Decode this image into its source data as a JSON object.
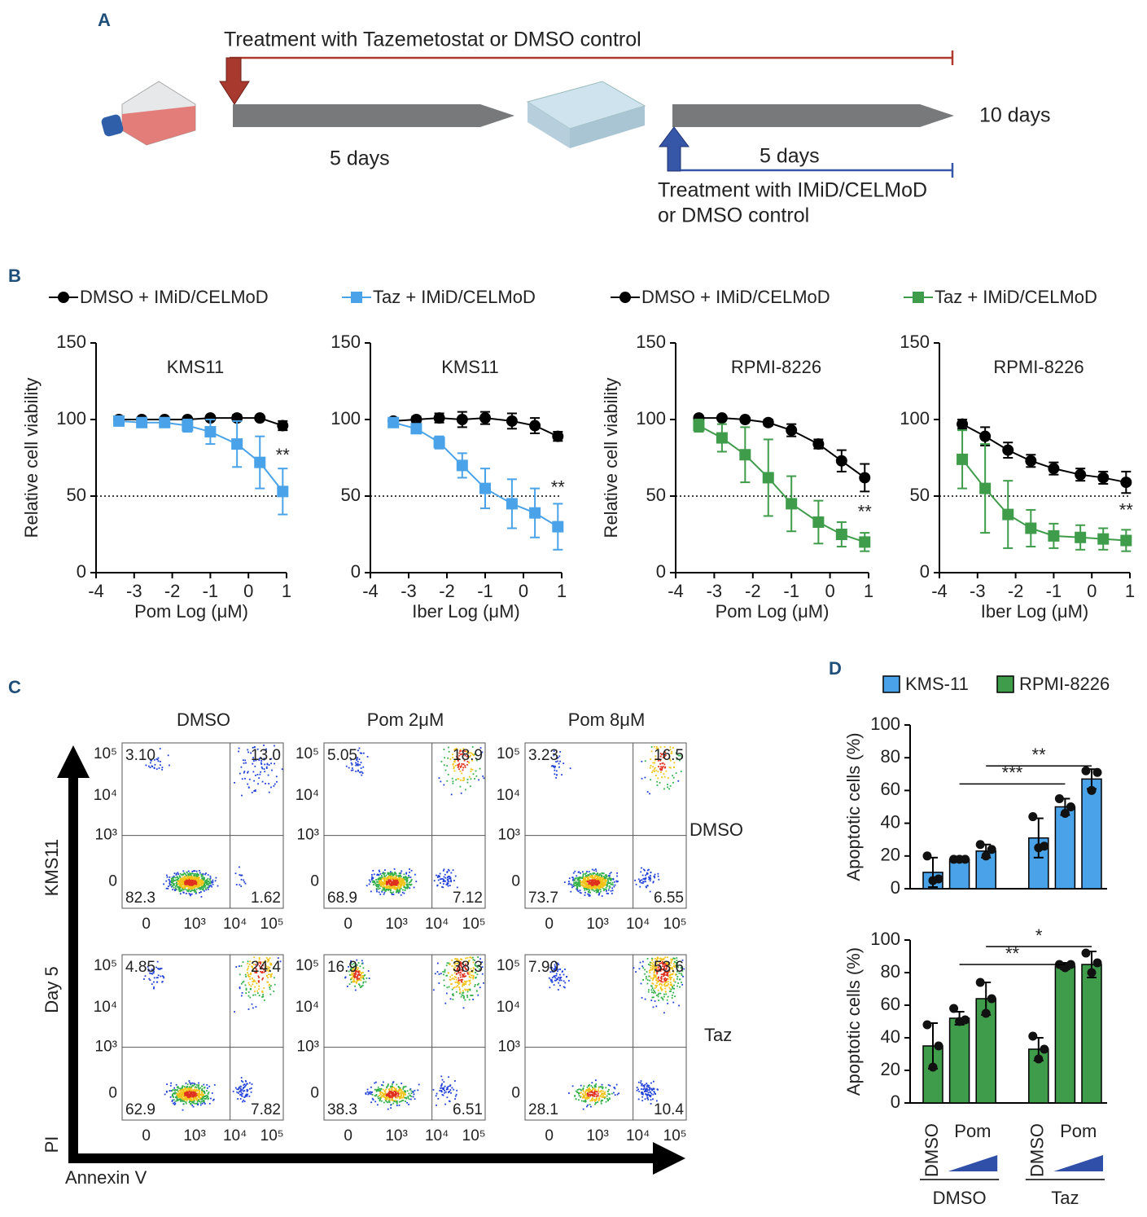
{
  "panel_labels": [
    "A",
    "B",
    "C",
    "D"
  ],
  "schematic": {
    "treatment_top": "Treatment with Tazemetostat or DMSO control",
    "days_first": "5 days",
    "days_total": "10 days",
    "days_second": "5 days",
    "treatment_bottom": [
      "Treatment with IMiD/CELMoD",
      "or DMSO control"
    ]
  },
  "chart_data": [
    {
      "type": "line",
      "title": "KMS11",
      "ylabel": "Relative cell viability",
      "xlabel": "Pom Log (μM)",
      "xlim": [
        -4,
        1
      ],
      "xticks": [
        -4,
        -3,
        -2,
        -1,
        0,
        1
      ],
      "ylim": [
        0,
        150
      ],
      "yticks": [
        0,
        50,
        100,
        150
      ],
      "reference_line": 50,
      "x": [
        -3.4,
        -2.8,
        -2.2,
        -1.6,
        -1,
        -0.3,
        0.3,
        0.9
      ],
      "series": [
        {
          "name": "DMSO + IMiD/CELMoD",
          "color": "#000000",
          "marker": "circle",
          "values": [
            100,
            100,
            100,
            100,
            101,
            101,
            101,
            96
          ],
          "errors": [
            2,
            1,
            1,
            1,
            1,
            2,
            1,
            3
          ]
        },
        {
          "color": "#4aa3e8",
          "marker": "square",
          "values": [
            99,
            98,
            98,
            96,
            92,
            84,
            72,
            53
          ],
          "errors": [
            2,
            2,
            2,
            4,
            8,
            15,
            17,
            15
          ]
        }
      ],
      "annotations": [
        {
          "text": "**",
          "x": 0.9,
          "y": 76
        }
      ]
    },
    {
      "type": "line",
      "title": "KMS11",
      "xlabel": "Iber Log (μM)",
      "xlim": [
        -4,
        1
      ],
      "xticks": [
        -4,
        -3,
        -2,
        -1,
        0,
        1
      ],
      "ylim": [
        0,
        150
      ],
      "yticks": [
        0,
        50,
        100,
        150
      ],
      "reference_line": 50,
      "x": [
        -3.4,
        -2.8,
        -2.2,
        -1.6,
        -1,
        -0.3,
        0.3,
        0.9
      ],
      "series": [
        {
          "color": "#000000",
          "marker": "circle",
          "values": [
            99,
            100,
            101,
            100,
            101,
            99,
            96,
            89
          ],
          "errors": [
            1,
            2,
            3,
            5,
            4,
            5,
            5,
            3
          ]
        },
        {
          "name": "Taz + IMiD/CELMoD",
          "color": "#4aa3e8",
          "marker": "square",
          "values": [
            98,
            94,
            85,
            70,
            55,
            45,
            39,
            30
          ],
          "errors": [
            1,
            2,
            4,
            8,
            13,
            16,
            16,
            15
          ]
        }
      ],
      "annotations": [
        {
          "text": "**",
          "x": 0.9,
          "y": 55
        }
      ]
    },
    {
      "type": "line",
      "title": "RPMI-8226",
      "ylabel": "Relative cell viability",
      "xlabel": "Pom Log (μM)",
      "xlim": [
        -4,
        1
      ],
      "xticks": [
        -4,
        -3,
        -2,
        -1,
        0,
        1
      ],
      "ylim": [
        0,
        150
      ],
      "yticks": [
        0,
        50,
        100,
        150
      ],
      "reference_line": 50,
      "x": [
        -3.4,
        -2.8,
        -2.2,
        -1.6,
        -1,
        -0.3,
        0.3,
        0.9
      ],
      "series": [
        {
          "name": "DMSO + IMiD/CELMoD",
          "color": "#000000",
          "marker": "circle",
          "values": [
            101,
            101,
            100,
            98,
            93,
            84,
            73,
            62
          ],
          "errors": [
            1,
            1,
            1,
            2,
            4,
            3,
            7,
            9
          ]
        },
        {
          "color": "#3f9c4a",
          "marker": "square",
          "values": [
            96,
            88,
            77,
            62,
            45,
            33,
            25,
            20
          ],
          "errors": [
            4,
            9,
            18,
            25,
            18,
            14,
            8,
            6
          ]
        }
      ],
      "annotations": [
        {
          "text": "**",
          "x": 0.9,
          "y": 39
        }
      ]
    },
    {
      "type": "line",
      "title": "RPMI-8226",
      "xlabel": "Iber Log (μM)",
      "xlim": [
        -4,
        1
      ],
      "xticks": [
        -4,
        -3,
        -2,
        -1,
        0,
        1
      ],
      "ylim": [
        0,
        150
      ],
      "yticks": [
        0,
        50,
        100,
        150
      ],
      "reference_line": 50,
      "x": [
        -3.4,
        -2.8,
        -2.2,
        -1.6,
        -1,
        -0.3,
        0.3,
        0.9
      ],
      "series": [
        {
          "color": "#000000",
          "marker": "circle",
          "values": [
            97,
            89,
            80,
            73,
            68,
            64,
            62,
            59
          ],
          "errors": [
            3,
            6,
            5,
            4,
            4,
            4,
            4,
            7
          ]
        },
        {
          "name": "Taz + IMiD/CELMoD",
          "color": "#3f9c4a",
          "marker": "square",
          "values": [
            74,
            55,
            38,
            29,
            24,
            23,
            22,
            21
          ],
          "errors": [
            19,
            29,
            22,
            12,
            8,
            8,
            7,
            7
          ]
        }
      ],
      "annotations": [
        {
          "text": "**",
          "x": 0.9,
          "y": 40
        }
      ]
    },
    {
      "type": "bar",
      "ylabel": "Apoptotic cells (%)",
      "ylim": [
        0,
        100
      ],
      "yticks": [
        0,
        20,
        40,
        60,
        80,
        100
      ],
      "series": [
        {
          "name": "KMS-11",
          "color": "#4aa3e8",
          "values": [
            10,
            18,
            23,
            31,
            50,
            67
          ],
          "errors": [
            9,
            1,
            4,
            12,
            5,
            6
          ],
          "points": [
            [
              20,
              5,
              6
            ],
            [
              18,
              18,
              18
            ],
            [
              27,
              20,
              24
            ],
            [
              44,
              25,
              26
            ],
            [
              55,
              46,
              50
            ],
            [
              72,
              60,
              71
            ]
          ]
        }
      ],
      "significance": [
        {
          "label": "**",
          "from": 2,
          "to": 5,
          "y": 75
        },
        {
          "label": "***",
          "from": 1,
          "to": 4,
          "y": 64
        }
      ]
    },
    {
      "type": "bar",
      "ylabel": "Apoptotic cells (%)",
      "ylim": [
        0,
        100
      ],
      "yticks": [
        0,
        20,
        40,
        60,
        80,
        100
      ],
      "categories": [
        "DMSO",
        null,
        null,
        "DMSO",
        null,
        null
      ],
      "subgroup_labels": [
        "Pom",
        "Pom"
      ],
      "groups": [
        "DMSO",
        "Taz"
      ],
      "series": [
        {
          "name": "RPMI-8226",
          "color": "#3f9c4a",
          "values": [
            35,
            52,
            64,
            33,
            84,
            85
          ],
          "errors": [
            14,
            4,
            10,
            7,
            2,
            8
          ],
          "points": [
            [
              48,
              22,
              35
            ],
            [
              58,
              50,
              51
            ],
            [
              74,
              55,
              64
            ],
            [
              41,
              27,
              33
            ],
            [
              85,
              83,
              85
            ],
            [
              92,
              80,
              86
            ]
          ]
        }
      ],
      "significance": [
        {
          "label": "*",
          "from": 2,
          "to": 5,
          "y": 96
        },
        {
          "label": "**",
          "from": 1,
          "to": 4,
          "y": 85
        }
      ]
    }
  ],
  "flow": {
    "columns": [
      "DMSO",
      "Pom 2μM",
      "Pom 8μM"
    ],
    "rows": [
      "DMSO",
      "Taz"
    ],
    "cell_line": "KMS11",
    "timepoint": "Day 5",
    "y_axis": "PI",
    "x_axis": "Annexin V",
    "tick_labels": [
      "0",
      "10³",
      "10⁴",
      "10⁵"
    ],
    "quadrants": [
      [
        [
          "3.10",
          "13.0",
          "82.3",
          "1.62"
        ],
        [
          "5.05",
          "18.9",
          "68.9",
          "7.12"
        ],
        [
          "3.23",
          "16.5",
          "73.7",
          "6.55"
        ]
      ],
      [
        [
          "4.85",
          "24.4",
          "62.9",
          "7.82"
        ],
        [
          "16.9",
          "38.3",
          "38.3",
          "6.51"
        ],
        [
          "7.90",
          "53.6",
          "28.1",
          "10.4"
        ]
      ]
    ]
  }
}
